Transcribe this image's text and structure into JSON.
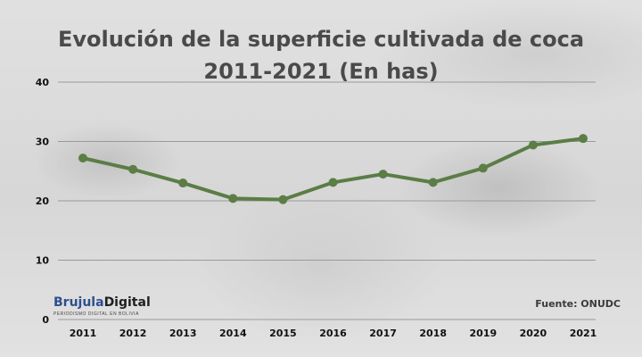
{
  "title": {
    "line1": "Evolución de la superficie cultivada de coca",
    "line2": "2011-2021 (En has)"
  },
  "brand": {
    "part1": "Brujula",
    "part2": "Digital",
    "tagline": "PERIODISMO DIGITAL EN BOLIVIA"
  },
  "source": "Fuente: ONUDC",
  "colors": {
    "line": "#5b7d46",
    "grid": "#9a9a9a",
    "axis_text": "#111111"
  },
  "chart_data": {
    "type": "line",
    "title": "Evolución de la superficie cultivada de coca 2011-2021 (En has)",
    "categories": [
      "2011",
      "2012",
      "2013",
      "2014",
      "2015",
      "2016",
      "2017",
      "2018",
      "2019",
      "2020",
      "2021"
    ],
    "series": [
      {
        "values": [
          27.2,
          25.3,
          23.0,
          20.4,
          20.2,
          23.1,
          24.5,
          23.1,
          25.5,
          29.4,
          30.5
        ]
      }
    ],
    "yticks": [
      "0",
      "10",
      "20",
      "30",
      "40"
    ],
    "ylim": [
      0,
      40
    ],
    "xlabel": "",
    "ylabel": "",
    "grid": true,
    "legend": "none"
  }
}
